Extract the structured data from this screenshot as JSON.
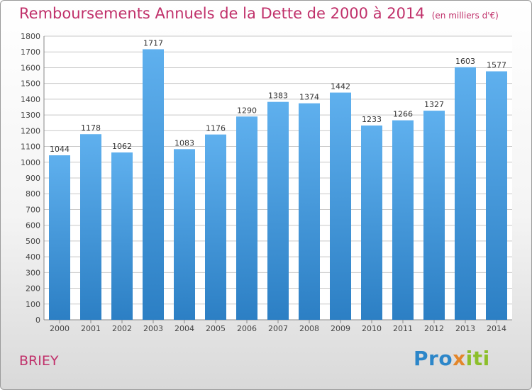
{
  "header": {
    "title": "Remboursements Annuels de la Dette de 2000 à 2014",
    "unit": "(en milliers d'€)"
  },
  "footer": {
    "town": "BRIEY",
    "brand_parts": [
      "Pro",
      "x",
      "iti"
    ]
  },
  "colors": {
    "title": "#c0306a",
    "bar_top": "#5fb0ee",
    "bar_bottom": "#2c7fc4",
    "brand_blue": "#2c86c9",
    "brand_orange": "#e3862a",
    "brand_green": "#8cbf2a"
  },
  "chart_data": {
    "type": "bar",
    "title": "Remboursements Annuels de la Dette de 2000 à 2014",
    "xlabel": "",
    "ylabel": "",
    "categories": [
      "2000",
      "2001",
      "2002",
      "2003",
      "2004",
      "2005",
      "2006",
      "2007",
      "2008",
      "2009",
      "2010",
      "2011",
      "2012",
      "2013",
      "2014"
    ],
    "values": [
      1044,
      1178,
      1062,
      1717,
      1083,
      1176,
      1290,
      1383,
      1374,
      1442,
      1233,
      1266,
      1327,
      1603,
      1577
    ],
    "ylim": [
      0,
      1800
    ],
    "yticks": [
      0,
      100,
      200,
      300,
      400,
      500,
      600,
      700,
      800,
      900,
      1000,
      1100,
      1200,
      1300,
      1400,
      1500,
      1600,
      1700,
      1800
    ],
    "grid": true,
    "data_labels": true
  }
}
